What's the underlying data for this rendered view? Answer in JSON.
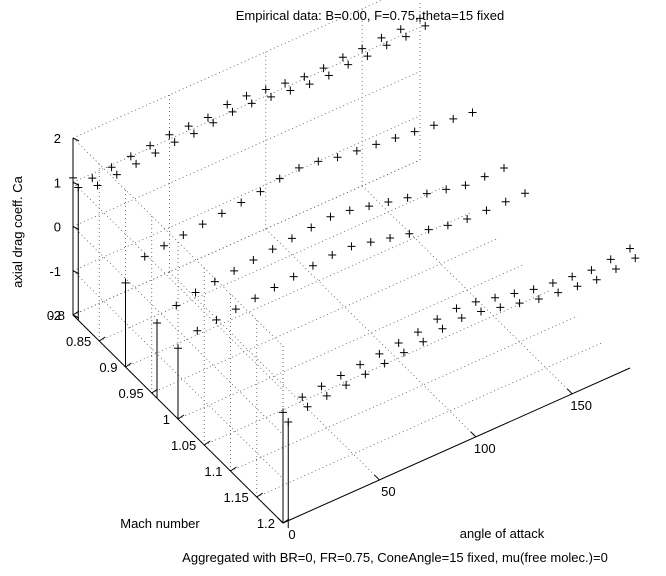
{
  "chart_data": {
    "type": "scatter3d",
    "title": "Empirical data: B=0.00, F=0.75, theta=15 fixed",
    "caption": "Aggregated with BR=0, FR=0.75, ConeAngle=15 fixed, mu(free molec.)=0",
    "xlabel": "angle of attack",
    "ylabel": "Mach number",
    "zlabel": "axial drag coeff. Ca",
    "xlim": [
      0,
      180
    ],
    "ylim": [
      0.8,
      1.2
    ],
    "zlim": [
      -2,
      2
    ],
    "xticks": [
      "0",
      "50",
      "100",
      "150"
    ],
    "yticks": [
      "0.8",
      "0.85",
      "0.9",
      "0.95",
      "1",
      "1.05",
      "1.1",
      "1.15",
      "1.2"
    ],
    "zticks": [
      "-2",
      "-1",
      "0",
      "1",
      "2"
    ],
    "grid": true,
    "marker": "+",
    "stem_lines": true,
    "series": [
      {
        "mach": 0.8,
        "angle": [
          0,
          10,
          20,
          30,
          40,
          50,
          60,
          70,
          80,
          90,
          100,
          110,
          120,
          130,
          140,
          150,
          160,
          170,
          180
        ],
        "ca": [
          1.1,
          0.9,
          0.95,
          1.0,
          1.05,
          1.1,
          1.1,
          1.1,
          1.2,
          1.2,
          1.15,
          1.1,
          1.05,
          1.05,
          1.1,
          1.1,
          1.15,
          1.15,
          1.2
        ]
      },
      {
        "mach": 0.81,
        "angle": [
          0,
          10,
          20,
          30,
          40,
          50,
          60,
          70,
          80,
          90,
          100,
          110,
          120,
          130,
          140,
          150,
          160,
          170,
          180
        ],
        "ca": [
          1.0,
          0.85,
          0.9,
          0.95,
          1.0,
          1.05,
          1.05,
          1.1,
          1.15,
          1.15,
          1.1,
          1.05,
          1.0,
          1.0,
          1.05,
          1.05,
          1.1,
          1.1,
          1.15
        ]
      },
      {
        "mach": 0.9,
        "angle": [
          0,
          10,
          20,
          30,
          40,
          50,
          60,
          70,
          80,
          90,
          100,
          110,
          120,
          130,
          140,
          150,
          160,
          170,
          180
        ],
        "ca": [
          -0.1,
          0.3,
          0.35,
          0.4,
          0.45,
          0.5,
          0.55,
          0.6,
          0.7,
          0.75,
          0.7,
          0.6,
          0.55,
          0.5,
          0.45,
          0.4,
          0.35,
          0.3,
          0.25
        ]
      },
      {
        "mach": 0.96,
        "angle": [
          0,
          10,
          20,
          30,
          40,
          50,
          60,
          70,
          80,
          90,
          100,
          110,
          120,
          130,
          140,
          150,
          160,
          170,
          180
        ],
        "ca": [
          -0.3,
          -0.1,
          0.0,
          0.05,
          0.1,
          0.15,
          0.2,
          0.25,
          0.3,
          0.35,
          0.3,
          0.2,
          0.1,
          0.0,
          -0.1,
          -0.2,
          -0.3,
          -0.3,
          -0.3
        ]
      },
      {
        "mach": 1.0,
        "angle": [
          0,
          10,
          20,
          30,
          40,
          50,
          60,
          70,
          80,
          90,
          100,
          110,
          120,
          130,
          140,
          150,
          160,
          170,
          180
        ],
        "ca": [
          -0.4,
          -0.2,
          -0.15,
          -0.1,
          -0.05,
          0.0,
          0.05,
          0.1,
          0.15,
          0.15,
          0.05,
          -0.05,
          -0.15,
          -0.25,
          -0.35,
          -0.4,
          -0.4,
          -0.4,
          -0.4
        ]
      },
      {
        "mach": 1.2,
        "angle": [
          0,
          10,
          20,
          30,
          40,
          50,
          60,
          70,
          80,
          90,
          100,
          110,
          120,
          130,
          140,
          150,
          160,
          170,
          180
        ],
        "ca": [
          0.5,
          0.65,
          0.7,
          0.75,
          0.8,
          0.85,
          0.9,
          0.95,
          1.05,
          1.1,
          1.05,
          0.95,
          0.85,
          0.75,
          0.7,
          0.65,
          0.6,
          0.65,
          0.7
        ]
      },
      {
        "mach": 1.21,
        "angle": [
          0,
          10,
          20,
          30,
          40,
          50,
          60,
          70,
          80,
          90,
          100,
          110,
          120,
          130,
          140,
          150,
          160,
          170,
          180
        ],
        "ca": [
          0.4,
          0.55,
          0.6,
          0.65,
          0.7,
          0.75,
          0.8,
          0.85,
          0.95,
          1.0,
          0.95,
          0.85,
          0.75,
          0.65,
          0.6,
          0.55,
          0.5,
          0.55,
          0.6
        ]
      }
    ],
    "stems": [
      {
        "mach": 0.8,
        "angle": 0,
        "ca": 1.1
      },
      {
        "mach": 0.81,
        "angle": 0,
        "ca": 1.0
      },
      {
        "mach": 0.9,
        "angle": 0,
        "ca": -0.1
      },
      {
        "mach": 0.96,
        "angle": 0,
        "ca": -0.3
      },
      {
        "mach": 1.0,
        "angle": 0,
        "ca": -0.4
      },
      {
        "mach": 1.2,
        "angle": 0,
        "ca": 0.5
      },
      {
        "mach": 1.21,
        "angle": 0,
        "ca": 0.4
      }
    ]
  }
}
